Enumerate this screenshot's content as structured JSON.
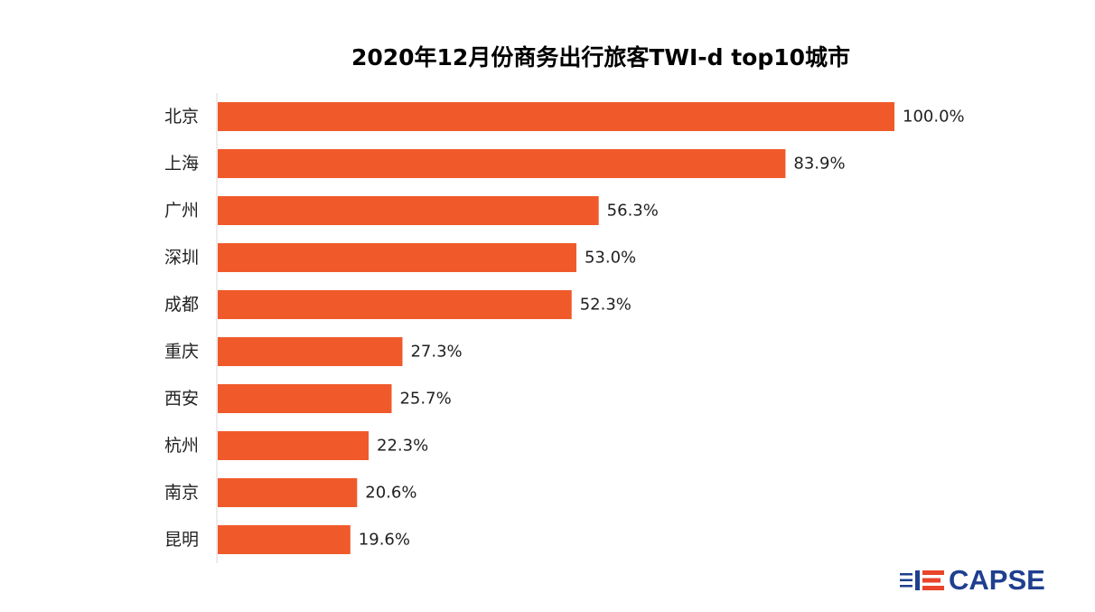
{
  "chart_data": {
    "type": "bar",
    "orientation": "horizontal",
    "title": "2020年12月份商务出行旅客TWI-d top10城市",
    "categories": [
      "北京",
      "上海",
      "广州",
      "深圳",
      "成都",
      "重庆",
      "西安",
      "杭州",
      "南京",
      "昆明"
    ],
    "values": [
      100.0,
      83.9,
      56.3,
      53.0,
      52.3,
      27.3,
      25.7,
      22.3,
      20.6,
      19.6
    ],
    "value_labels": [
      "100.0%",
      "83.9%",
      "56.3%",
      "53.0%",
      "52.3%",
      "27.3%",
      "25.7%",
      "22.3%",
      "20.6%",
      "19.6%"
    ],
    "xlabel": "",
    "ylabel": "",
    "xlim": [
      0,
      100
    ],
    "grid": false,
    "bar_color": "#f05a2b",
    "axis_color": "#d9d9d9"
  },
  "logo": {
    "text": "CAPSE",
    "brand_color": "#1f3f8f",
    "accent_color": "#e8452a",
    "icon": "capse-logo-icon"
  }
}
